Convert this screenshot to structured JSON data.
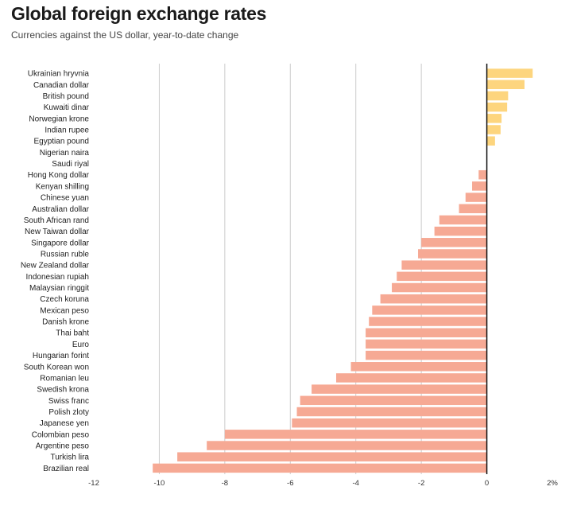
{
  "header": {
    "title": "Global foreign exchange rates",
    "subtitle": "Currencies against the US dollar, year-to-date change"
  },
  "chart_data": {
    "type": "bar",
    "orientation": "horizontal",
    "title": "Global foreign exchange rates",
    "subtitle": "Currencies against the US dollar, year-to-date change",
    "xlabel": "",
    "ylabel": "",
    "xlim": [
      -12,
      2
    ],
    "ticks": [
      -12,
      -10,
      -8,
      -6,
      -4,
      -2,
      0,
      2
    ],
    "tick_labels": [
      "-12",
      "-10",
      "-8",
      "-6",
      "-4",
      "-2",
      "0",
      "2%"
    ],
    "grid": "vertical",
    "colors": {
      "positive": "#fdd57e",
      "negative": "#f6a994",
      "zero_line": "#111111",
      "grid": "#cccccc"
    },
    "categories": [
      "Ukrainian hryvnia",
      "Canadian dollar",
      "British pound",
      "Kuwaiti dinar",
      "Norwegian krone",
      "Indian rupee",
      "Egyptian pound",
      "Nigerian naira",
      "Saudi riyal",
      "Hong Kong dollar",
      "Kenyan shilling",
      "Chinese yuan",
      "Australian dollar",
      "South African rand",
      "New Taiwan dollar",
      "Singapore dollar",
      "Russian ruble",
      "New Zealand dollar",
      "Indonesian rupiah",
      "Malaysian ringgit",
      "Czech koruna",
      "Mexican peso",
      "Danish krone",
      "Thai baht",
      "Euro",
      "Hungarian forint",
      "South Korean won",
      "Romanian leu",
      "Swedish krona",
      "Swiss franc",
      "Polish zloty",
      "Japanese yen",
      "Colombian peso",
      "Argentine peso",
      "Turkish lira",
      "Brazilian real"
    ],
    "values": [
      1.4,
      1.15,
      0.65,
      0.62,
      0.45,
      0.42,
      0.25,
      0.0,
      0.0,
      -0.25,
      -0.45,
      -0.65,
      -0.85,
      -1.45,
      -1.6,
      -2.0,
      -2.1,
      -2.6,
      -2.75,
      -2.9,
      -3.25,
      -3.5,
      -3.6,
      -3.7,
      -3.7,
      -3.7,
      -4.15,
      -4.6,
      -5.35,
      -5.7,
      -5.8,
      -5.95,
      -8.0,
      -8.55,
      -9.45,
      -10.2
    ]
  }
}
